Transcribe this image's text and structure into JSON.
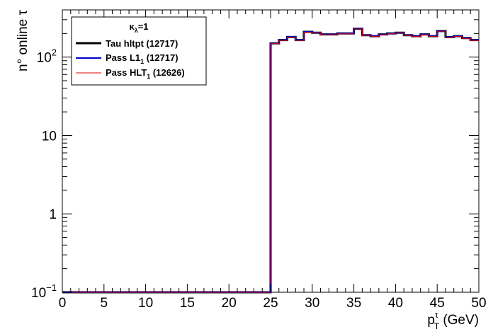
{
  "chart_data": {
    "type": "line",
    "subtype": "step-histogram",
    "title": "",
    "xlabel": {
      "main": "p",
      "sup": "τ",
      "sub": "T",
      "unit": " (GeV)"
    },
    "ylabel": "n° online  τ",
    "xlim": [
      0,
      50
    ],
    "ylim": [
      0.1,
      400
    ],
    "yscale": "log",
    "x_ticks": [
      "0",
      "5",
      "10",
      "15",
      "20",
      "25",
      "30",
      "35",
      "40",
      "45",
      "50"
    ],
    "y_ticks": [
      {
        "value": 0.1,
        "label": "10",
        "sup": "−1"
      },
      {
        "value": 1,
        "label": "1",
        "sup": ""
      },
      {
        "value": 10,
        "label": "10",
        "sup": ""
      },
      {
        "value": 100,
        "label": "10",
        "sup": "2"
      }
    ],
    "grid": false,
    "legend": {
      "position": "top-left",
      "header": {
        "main": "κ",
        "sub": "λ",
        "rest": "=1"
      },
      "entries": [
        {
          "main": "Tau hltpt",
          "sub": "",
          "rest": " (12717)"
        },
        {
          "main": "Pass L1",
          "sub": "1",
          "rest": " (12717)"
        },
        {
          "main": "Pass HLT",
          "sub": "1",
          "rest": " (12626)"
        }
      ]
    },
    "bin_edges": [
      0,
      25,
      26,
      27,
      28,
      29,
      30,
      31,
      32,
      33,
      34,
      35,
      36,
      37,
      38,
      39,
      40,
      41,
      42,
      43,
      44,
      45,
      46,
      47,
      48,
      49,
      50
    ],
    "series": [
      {
        "name": "Tau hltpt",
        "color": "#000000",
        "width": 3,
        "values": [
          0.1,
          150,
          165,
          180,
          165,
          210,
          205,
          195,
          195,
          200,
          200,
          230,
          190,
          185,
          195,
          200,
          205,
          190,
          185,
          195,
          185,
          215,
          180,
          185,
          175,
          165
        ]
      },
      {
        "name": "Pass L1",
        "color": "#0000cc",
        "width": 2,
        "values": [
          0.1,
          150,
          165,
          182,
          165,
          210,
          205,
          195,
          195,
          200,
          200,
          230,
          190,
          185,
          195,
          200,
          205,
          190,
          185,
          195,
          185,
          215,
          180,
          185,
          175,
          165
        ]
      },
      {
        "name": "Pass HLT",
        "color": "#dd0000",
        "width": 1,
        "values": [
          0.1,
          148,
          163,
          179,
          163,
          208,
          203,
          193,
          193,
          198,
          198,
          228,
          188,
          183,
          193,
          198,
          203,
          188,
          183,
          193,
          183,
          213,
          178,
          183,
          173,
          163
        ]
      }
    ]
  }
}
